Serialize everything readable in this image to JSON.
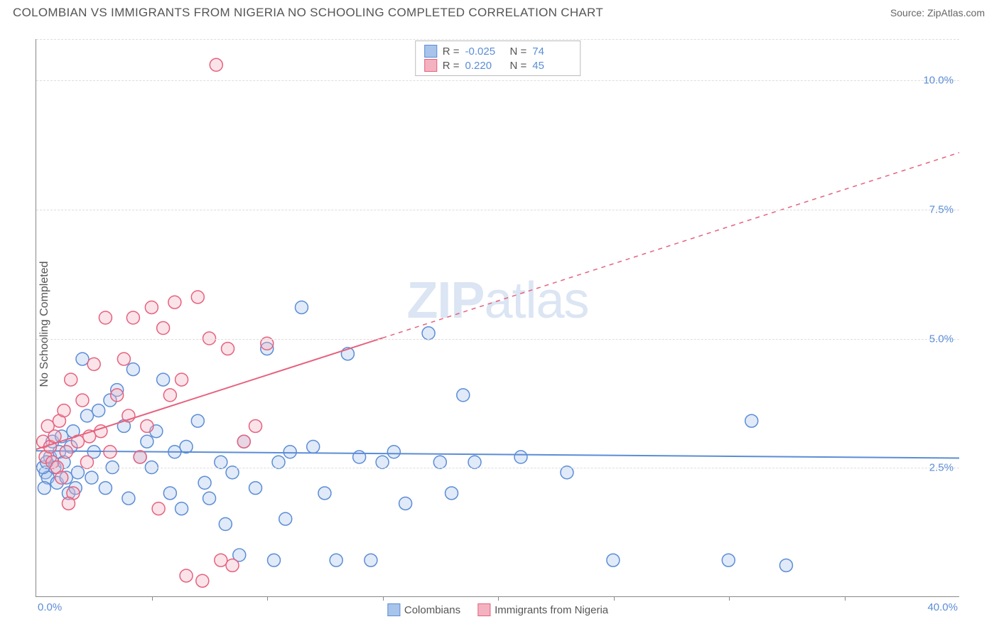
{
  "title": "COLOMBIAN VS IMMIGRANTS FROM NIGERIA NO SCHOOLING COMPLETED CORRELATION CHART",
  "source": "Source: ZipAtlas.com",
  "ylabel": "No Schooling Completed",
  "watermark": {
    "bold": "ZIP",
    "rest": "atlas"
  },
  "chart": {
    "type": "scatter",
    "xlim": [
      0,
      40
    ],
    "ylim": [
      0,
      10.8
    ],
    "x_ticks": [
      5,
      10,
      15,
      20,
      25,
      30,
      35
    ],
    "y_gridlines": [
      2.5,
      5.0,
      7.5,
      10.0
    ],
    "y_tick_labels": [
      "2.5%",
      "5.0%",
      "7.5%",
      "10.0%"
    ],
    "x_min_label": "0.0%",
    "x_max_label": "40.0%",
    "background_color": "#ffffff",
    "grid_color": "#dddddd",
    "axis_color": "#888888",
    "marker_radius": 9,
    "marker_stroke_width": 1.5,
    "fill_opacity": 0.35,
    "series": [
      {
        "name": "Colombians",
        "color": "#5b8dd6",
        "fill": "#a8c4ea",
        "R": "-0.025",
        "N": "74",
        "regression": {
          "x1": 0,
          "y1": 2.82,
          "x2": 40,
          "y2": 2.68,
          "dashed_from_x": 40
        },
        "points": [
          [
            0.4,
            2.4
          ],
          [
            0.5,
            2.3
          ],
          [
            0.6,
            2.7
          ],
          [
            0.7,
            3.0
          ],
          [
            0.8,
            2.5
          ],
          [
            0.9,
            2.2
          ],
          [
            1.0,
            2.8
          ],
          [
            1.1,
            3.1
          ],
          [
            1.2,
            2.6
          ],
          [
            1.3,
            2.3
          ],
          [
            1.4,
            2.0
          ],
          [
            1.5,
            2.9
          ],
          [
            1.6,
            3.2
          ],
          [
            1.7,
            2.1
          ],
          [
            1.8,
            2.4
          ],
          [
            2.0,
            4.6
          ],
          [
            2.2,
            3.5
          ],
          [
            2.4,
            2.3
          ],
          [
            2.5,
            2.8
          ],
          [
            2.7,
            3.6
          ],
          [
            3.0,
            2.1
          ],
          [
            3.2,
            3.8
          ],
          [
            3.3,
            2.5
          ],
          [
            3.5,
            4.0
          ],
          [
            3.8,
            3.3
          ],
          [
            4.0,
            1.9
          ],
          [
            4.2,
            4.4
          ],
          [
            4.5,
            2.7
          ],
          [
            4.8,
            3.0
          ],
          [
            5.0,
            2.5
          ],
          [
            5.2,
            3.2
          ],
          [
            5.5,
            4.2
          ],
          [
            5.8,
            2.0
          ],
          [
            6.0,
            2.8
          ],
          [
            6.3,
            1.7
          ],
          [
            6.5,
            2.9
          ],
          [
            7.0,
            3.4
          ],
          [
            7.3,
            2.2
          ],
          [
            7.5,
            1.9
          ],
          [
            8.0,
            2.6
          ],
          [
            8.2,
            1.4
          ],
          [
            8.5,
            2.4
          ],
          [
            8.8,
            0.8
          ],
          [
            9.0,
            3.0
          ],
          [
            9.5,
            2.1
          ],
          [
            10.0,
            4.8
          ],
          [
            10.3,
            0.7
          ],
          [
            10.5,
            2.6
          ],
          [
            10.8,
            1.5
          ],
          [
            11.0,
            2.8
          ],
          [
            11.5,
            5.6
          ],
          [
            12.0,
            2.9
          ],
          [
            12.5,
            2.0
          ],
          [
            13.0,
            0.7
          ],
          [
            13.5,
            4.7
          ],
          [
            14.0,
            2.7
          ],
          [
            14.5,
            0.7
          ],
          [
            15.0,
            2.6
          ],
          [
            15.5,
            2.8
          ],
          [
            16.0,
            1.8
          ],
          [
            17.0,
            5.1
          ],
          [
            17.5,
            2.6
          ],
          [
            18.0,
            2.0
          ],
          [
            18.5,
            3.9
          ],
          [
            19.0,
            2.6
          ],
          [
            21.0,
            2.7
          ],
          [
            23.0,
            2.4
          ],
          [
            25.0,
            0.7
          ],
          [
            30.0,
            0.7
          ],
          [
            31.0,
            3.4
          ],
          [
            32.5,
            0.6
          ],
          [
            0.3,
            2.5
          ],
          [
            0.35,
            2.1
          ],
          [
            0.45,
            2.6
          ]
        ]
      },
      {
        "name": "Immigrants from Nigeria",
        "color": "#e6617e",
        "fill": "#f4b2c0",
        "R": "0.220",
        "N": "45",
        "regression": {
          "x1": 0,
          "y1": 2.85,
          "x2": 40,
          "y2": 8.6,
          "dashed_from_x": 15
        },
        "points": [
          [
            0.3,
            3.0
          ],
          [
            0.4,
            2.7
          ],
          [
            0.5,
            3.3
          ],
          [
            0.6,
            2.9
          ],
          [
            0.7,
            2.6
          ],
          [
            0.8,
            3.1
          ],
          [
            0.9,
            2.5
          ],
          [
            1.0,
            3.4
          ],
          [
            1.1,
            2.3
          ],
          [
            1.2,
            3.6
          ],
          [
            1.3,
            2.8
          ],
          [
            1.5,
            4.2
          ],
          [
            1.6,
            2.0
          ],
          [
            1.8,
            3.0
          ],
          [
            2.0,
            3.8
          ],
          [
            2.2,
            2.6
          ],
          [
            2.5,
            4.5
          ],
          [
            2.8,
            3.2
          ],
          [
            3.0,
            5.4
          ],
          [
            3.2,
            2.8
          ],
          [
            3.5,
            3.9
          ],
          [
            3.8,
            4.6
          ],
          [
            4.0,
            3.5
          ],
          [
            4.2,
            5.4
          ],
          [
            4.5,
            2.7
          ],
          [
            4.8,
            3.3
          ],
          [
            5.0,
            5.6
          ],
          [
            5.3,
            1.7
          ],
          [
            5.5,
            5.2
          ],
          [
            5.8,
            3.9
          ],
          [
            6.0,
            5.7
          ],
          [
            6.3,
            4.2
          ],
          [
            6.5,
            0.4
          ],
          [
            7.0,
            5.8
          ],
          [
            7.2,
            0.3
          ],
          [
            7.5,
            5.0
          ],
          [
            7.8,
            10.3
          ],
          [
            8.0,
            0.7
          ],
          [
            8.3,
            4.8
          ],
          [
            8.5,
            0.6
          ],
          [
            9.0,
            3.0
          ],
          [
            9.5,
            3.3
          ],
          [
            10.0,
            4.9
          ],
          [
            1.4,
            1.8
          ],
          [
            2.3,
            3.1
          ]
        ]
      }
    ]
  },
  "legend": {
    "items": [
      {
        "label": "Colombians",
        "fill": "#a8c4ea",
        "stroke": "#5b8dd6"
      },
      {
        "label": "Immigrants from Nigeria",
        "fill": "#f4b2c0",
        "stroke": "#e6617e"
      }
    ]
  }
}
